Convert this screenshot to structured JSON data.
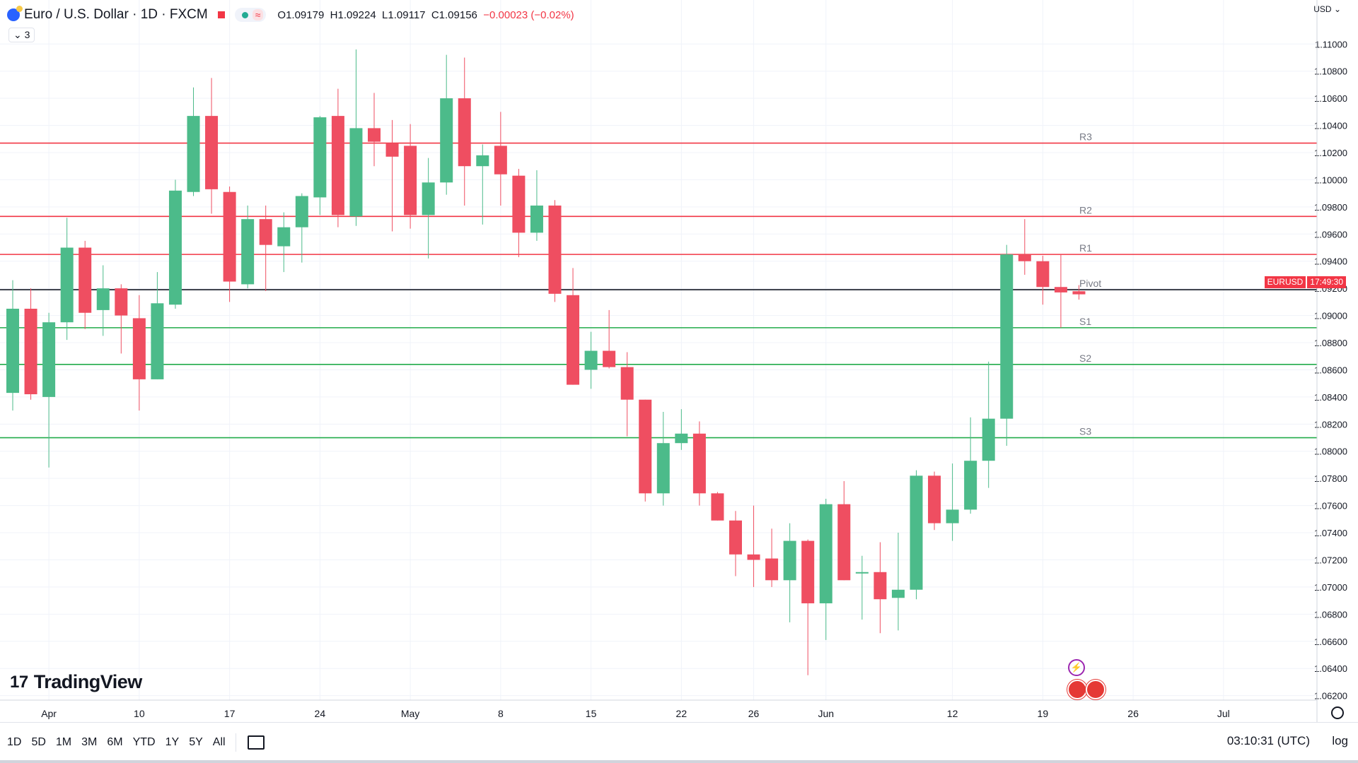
{
  "header": {
    "symbol": "Euro / U.S. Dollar · 1D · FXCM",
    "open": "O1.09179",
    "high": "H1.09224",
    "low": "L1.09117",
    "close": "C1.09156",
    "change": "−0.00023 (−0.02%)",
    "indicator_count": "3",
    "currency": "USD"
  },
  "price_tag": {
    "symbol": "EURUSD",
    "countdown": "17:49:30"
  },
  "timeframes": [
    "1D",
    "5D",
    "1M",
    "3M",
    "6M",
    "YTD",
    "1Y",
    "5Y",
    "All"
  ],
  "footer": {
    "clock": "03:10:31 (UTC)",
    "log_label": "log"
  },
  "branding": "TradingView",
  "colors": {
    "up": "#4cbb8a",
    "down": "#ef4e61",
    "resistance": "#f23645",
    "support": "#22ab4a",
    "pivot": "#131722"
  },
  "chart_data": {
    "type": "candlestick",
    "y_axis_labels": [
      "1.11000",
      "1.10800",
      "1.10600",
      "1.10400",
      "1.10200",
      "1.10000",
      "1.09800",
      "1.09600",
      "1.09400",
      "1.09200",
      "1.09000",
      "1.08800",
      "1.08600",
      "1.08400",
      "1.08200",
      "1.08000",
      "1.07800",
      "1.07600",
      "1.07400",
      "1.07200",
      "1.07000",
      "1.06800",
      "1.06600",
      "1.06400",
      "1.06200"
    ],
    "y_ticks": [
      1.11,
      1.108,
      1.106,
      1.104,
      1.102,
      1.1,
      1.098,
      1.096,
      1.094,
      1.092,
      1.09,
      1.088,
      1.086,
      1.084,
      1.082,
      1.08,
      1.078,
      1.076,
      1.074,
      1.072,
      1.07,
      1.068,
      1.066,
      1.064,
      1.062
    ],
    "ylim": [
      1.0612,
      1.1122
    ],
    "x_labels": [
      "Apr",
      "10",
      "17",
      "24",
      "May",
      "8",
      "15",
      "22",
      "26",
      "Jun",
      "12",
      "19",
      "26",
      "Jul"
    ],
    "x_label_index": [
      2,
      7,
      12,
      17,
      22,
      27,
      32,
      37,
      41,
      45,
      52,
      57,
      62,
      67
    ],
    "levels": [
      {
        "name": "R3",
        "value": 1.1027,
        "kind": "resistance"
      },
      {
        "name": "R2",
        "value": 1.0973,
        "kind": "resistance"
      },
      {
        "name": "R1",
        "value": 1.0945,
        "kind": "resistance"
      },
      {
        "name": "Pivot",
        "value": 1.0919,
        "kind": "pivot"
      },
      {
        "name": "S1",
        "value": 1.0891,
        "kind": "support"
      },
      {
        "name": "S2",
        "value": 1.0864,
        "kind": "support"
      },
      {
        "name": "S3",
        "value": 1.081,
        "kind": "support"
      }
    ],
    "candles": [
      {
        "o": 1.0843,
        "h": 1.0926,
        "l": 1.083,
        "c": 1.0905
      },
      {
        "o": 1.0905,
        "h": 1.092,
        "l": 1.0838,
        "c": 1.0842
      },
      {
        "o": 1.084,
        "h": 1.0902,
        "l": 1.0788,
        "c": 1.0895
      },
      {
        "o": 1.0895,
        "h": 1.0972,
        "l": 1.0882,
        "c": 1.095
      },
      {
        "o": 1.095,
        "h": 1.0955,
        "l": 1.089,
        "c": 1.0902
      },
      {
        "o": 1.0904,
        "h": 1.0937,
        "l": 1.0885,
        "c": 1.092
      },
      {
        "o": 1.092,
        "h": 1.0923,
        "l": 1.0872,
        "c": 1.09
      },
      {
        "o": 1.0898,
        "h": 1.0915,
        "l": 1.083,
        "c": 1.0853
      },
      {
        "o": 1.0853,
        "h": 1.0932,
        "l": 1.0853,
        "c": 1.0909
      },
      {
        "o": 1.0908,
        "h": 1.1,
        "l": 1.0905,
        "c": 1.0992
      },
      {
        "o": 1.0991,
        "h": 1.1068,
        "l": 1.0988,
        "c": 1.1047
      },
      {
        "o": 1.1047,
        "h": 1.1075,
        "l": 1.0975,
        "c": 1.0993
      },
      {
        "o": 1.0991,
        "h": 1.0995,
        "l": 1.091,
        "c": 1.0925
      },
      {
        "o": 1.0923,
        "h": 1.0981,
        "l": 1.092,
        "c": 1.0971
      },
      {
        "o": 1.0971,
        "h": 1.0981,
        "l": 1.0918,
        "c": 1.0952
      },
      {
        "o": 1.0951,
        "h": 1.0976,
        "l": 1.0932,
        "c": 1.0965
      },
      {
        "o": 1.0965,
        "h": 1.099,
        "l": 1.0939,
        "c": 1.0988
      },
      {
        "o": 1.0987,
        "h": 1.1047,
        "l": 1.0974,
        "c": 1.1046
      },
      {
        "o": 1.1047,
        "h": 1.1067,
        "l": 1.0965,
        "c": 1.0974
      },
      {
        "o": 1.0973,
        "h": 1.1096,
        "l": 1.0966,
        "c": 1.1038
      },
      {
        "o": 1.1038,
        "h": 1.1064,
        "l": 1.101,
        "c": 1.1028
      },
      {
        "o": 1.1027,
        "h": 1.1044,
        "l": 1.0962,
        "c": 1.1017
      },
      {
        "o": 1.1025,
        "h": 1.1041,
        "l": 1.0964,
        "c": 1.0974
      },
      {
        "o": 1.0974,
        "h": 1.1016,
        "l": 1.0942,
        "c": 1.0998
      },
      {
        "o": 1.0998,
        "h": 1.1092,
        "l": 1.0989,
        "c": 1.106
      },
      {
        "o": 1.106,
        "h": 1.109,
        "l": 1.0981,
        "c": 1.101
      },
      {
        "o": 1.101,
        "h": 1.1026,
        "l": 1.0967,
        "c": 1.1018
      },
      {
        "o": 1.1025,
        "h": 1.105,
        "l": 1.0981,
        "c": 1.1004
      },
      {
        "o": 1.1003,
        "h": 1.1008,
        "l": 1.0943,
        "c": 1.0961
      },
      {
        "o": 1.0961,
        "h": 1.1007,
        "l": 1.0955,
        "c": 1.0981
      },
      {
        "o": 1.0981,
        "h": 1.0985,
        "l": 1.091,
        "c": 1.0916
      },
      {
        "o": 1.0915,
        "h": 1.0935,
        "l": 1.0849,
        "c": 1.0849
      },
      {
        "o": 1.086,
        "h": 1.0888,
        "l": 1.0846,
        "c": 1.0874
      },
      {
        "o": 1.0874,
        "h": 1.0904,
        "l": 1.0861,
        "c": 1.0862
      },
      {
        "o": 1.0862,
        "h": 1.0873,
        "l": 1.0811,
        "c": 1.0838
      },
      {
        "o": 1.0838,
        "h": 1.0838,
        "l": 1.0763,
        "c": 1.0769
      },
      {
        "o": 1.0769,
        "h": 1.0829,
        "l": 1.076,
        "c": 1.0806
      },
      {
        "o": 1.0806,
        "h": 1.0831,
        "l": 1.0801,
        "c": 1.0813
      },
      {
        "o": 1.0813,
        "h": 1.0822,
        "l": 1.076,
        "c": 1.0769
      },
      {
        "o": 1.0769,
        "h": 1.077,
        "l": 1.0749,
        "c": 1.0749
      },
      {
        "o": 1.0749,
        "h": 1.0756,
        "l": 1.0708,
        "c": 1.0724
      },
      {
        "o": 1.0724,
        "h": 1.076,
        "l": 1.07,
        "c": 1.072
      },
      {
        "o": 1.0721,
        "h": 1.0743,
        "l": 1.07,
        "c": 1.0705
      },
      {
        "o": 1.0705,
        "h": 1.0747,
        "l": 1.0674,
        "c": 1.0734
      },
      {
        "o": 1.0734,
        "h": 1.0735,
        "l": 1.0635,
        "c": 1.0688
      },
      {
        "o": 1.0688,
        "h": 1.0765,
        "l": 1.0661,
        "c": 1.0761
      },
      {
        "o": 1.0761,
        "h": 1.0778,
        "l": 1.0705,
        "c": 1.0705
      },
      {
        "o": 1.0711,
        "h": 1.0723,
        "l": 1.0676,
        "c": 1.0711
      },
      {
        "o": 1.0711,
        "h": 1.0733,
        "l": 1.0666,
        "c": 1.0691
      },
      {
        "o": 1.0692,
        "h": 1.074,
        "l": 1.0668,
        "c": 1.0698
      },
      {
        "o": 1.0698,
        "h": 1.0786,
        "l": 1.0691,
        "c": 1.0782
      },
      {
        "o": 1.0782,
        "h": 1.0785,
        "l": 1.0742,
        "c": 1.0747
      },
      {
        "o": 1.0747,
        "h": 1.0791,
        "l": 1.0734,
        "c": 1.0757
      },
      {
        "o": 1.0757,
        "h": 1.0825,
        "l": 1.0754,
        "c": 1.0793
      },
      {
        "o": 1.0793,
        "h": 1.0866,
        "l": 1.0773,
        "c": 1.0824
      },
      {
        "o": 1.0824,
        "h": 1.0952,
        "l": 1.0804,
        "c": 1.0945
      },
      {
        "o": 1.0945,
        "h": 1.0971,
        "l": 1.093,
        "c": 1.094
      },
      {
        "o": 1.094,
        "h": 1.0944,
        "l": 1.0908,
        "c": 1.0921
      },
      {
        "o": 1.0921,
        "h": 1.0945,
        "l": 1.0891,
        "c": 1.0917
      },
      {
        "o": 1.09179,
        "h": 1.09224,
        "l": 1.09117,
        "c": 1.09156
      }
    ]
  }
}
